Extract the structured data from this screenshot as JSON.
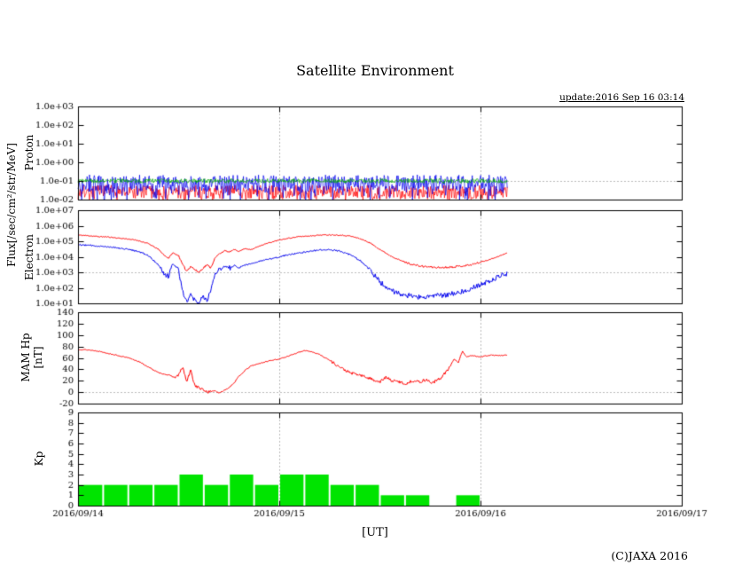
{
  "page": {
    "title": "Satellite Environment",
    "update": "update:2016 Sep 16 03:14",
    "x_axis_unit": "[UT]",
    "copyright": "(C)JAXA 2016",
    "axis_labels": {
      "flux": "Flux[/sec/cm²/str/MeV]",
      "proton": "Proton",
      "electron": "Electron",
      "mam_line1": "MAM Hp",
      "mam_line2": "[nT]",
      "kp": "Kp"
    }
  },
  "chart_data": {
    "type": "line",
    "subtype": "multi-panel time series",
    "title": "Satellite Environment",
    "x": {
      "label": "[UT]",
      "ticks": [
        "2016/09/14",
        "2016/09/15",
        "2016/09/16",
        "2016/09/17"
      ],
      "span_days": 3,
      "grid_days": [
        1,
        2
      ],
      "data_end_day": 2.135
    },
    "panels": [
      {
        "id": "proton",
        "ylabel": "Proton",
        "scale": "log",
        "ylim": [
          0.01,
          1000
        ],
        "yticks": [
          "1.0e+03",
          "1.0e+02",
          "1.0e+01",
          "1.0e+00",
          "1.0e-01",
          "1.0e-02"
        ],
        "grid_y": 0.1,
        "series": [
          {
            "name": "proton-red",
            "color": "#ff0000",
            "kind": "noise-band",
            "band": [
              0.01,
              0.08
            ],
            "base_log": -1.6,
            "amp_log": 0.38,
            "dip_prob": 0.12,
            "dip_amp": 0.35,
            "seed": 7
          },
          {
            "name": "proton-blue",
            "color": "#0000ee",
            "kind": "noise-band",
            "band": [
              0.01,
              0.2
            ],
            "base_log": -1.12,
            "amp_log": 0.45,
            "dip_prob": 0.3,
            "dip_amp": 0.8,
            "seed": 8
          },
          {
            "name": "proton-green",
            "color": "#00aa00",
            "kind": "noise-band",
            "band": [
              0.07,
              0.15
            ],
            "base_log": -1.0,
            "amp_log": 0.12,
            "dip_prob": 0,
            "dip_amp": 0,
            "seed": 9
          }
        ]
      },
      {
        "id": "electron",
        "ylabel": "Electron",
        "scale": "log",
        "ylim": [
          10,
          10000000
        ],
        "yticks": [
          "1.0e+07",
          "1.0e+06",
          "1.0e+05",
          "1.0e+04",
          "1.0e+03",
          "1.0e+02",
          "1.0e+01"
        ],
        "grid_y": 1000,
        "series": [
          {
            "name": "electron-red",
            "color": "#ff0000",
            "seed": 11,
            "noise_below_log": 3.7,
            "noise_lo": 0.06,
            "noise_hi": 0.03,
            "points": [
              [
                0,
                250000
              ],
              [
                0.05,
                230000
              ],
              [
                0.1,
                200000
              ],
              [
                0.15,
                190000
              ],
              [
                0.2,
                160000
              ],
              [
                0.25,
                140000
              ],
              [
                0.3,
                110000
              ],
              [
                0.35,
                70000
              ],
              [
                0.4,
                30000
              ],
              [
                0.43,
                12000
              ],
              [
                0.45,
                8000
              ],
              [
                0.47,
                18000
              ],
              [
                0.5,
                12000
              ],
              [
                0.52,
                3000
              ],
              [
                0.54,
                1200
              ],
              [
                0.56,
                2500
              ],
              [
                0.58,
                1500
              ],
              [
                0.6,
                1000
              ],
              [
                0.62,
                1800
              ],
              [
                0.64,
                3000
              ],
              [
                0.66,
                2000
              ],
              [
                0.68,
                8000
              ],
              [
                0.7,
                15000
              ],
              [
                0.73,
                25000
              ],
              [
                0.75,
                20000
              ],
              [
                0.78,
                30000
              ],
              [
                0.8,
                22000
              ],
              [
                0.83,
                35000
              ],
              [
                0.86,
                28000
              ],
              [
                0.9,
                50000
              ],
              [
                0.95,
                80000
              ],
              [
                1.0,
                120000
              ],
              [
                1.05,
                160000
              ],
              [
                1.1,
                200000
              ],
              [
                1.15,
                220000
              ],
              [
                1.2,
                250000
              ],
              [
                1.25,
                260000
              ],
              [
                1.3,
                250000
              ],
              [
                1.35,
                220000
              ],
              [
                1.4,
                150000
              ],
              [
                1.45,
                80000
              ],
              [
                1.5,
                30000
              ],
              [
                1.55,
                12000
              ],
              [
                1.6,
                6000
              ],
              [
                1.65,
                3500
              ],
              [
                1.7,
                2500
              ],
              [
                1.75,
                2200
              ],
              [
                1.8,
                2000
              ],
              [
                1.85,
                2200
              ],
              [
                1.9,
                2500
              ],
              [
                1.95,
                3000
              ],
              [
                2.0,
                4500
              ],
              [
                2.05,
                7000
              ],
              [
                2.1,
                12000
              ],
              [
                2.135,
                18000
              ]
            ]
          },
          {
            "name": "electron-blue",
            "color": "#0000ee",
            "seed": 12,
            "noise_below_log": 3.3,
            "noise_lo": 0.17,
            "noise_hi": 0.05,
            "points": [
              [
                0,
                60000
              ],
              [
                0.05,
                55000
              ],
              [
                0.1,
                50000
              ],
              [
                0.15,
                45000
              ],
              [
                0.2,
                38000
              ],
              [
                0.25,
                30000
              ],
              [
                0.3,
                22000
              ],
              [
                0.35,
                12000
              ],
              [
                0.4,
                3000
              ],
              [
                0.43,
                800
              ],
              [
                0.45,
                500
              ],
              [
                0.47,
                4000
              ],
              [
                0.5,
                1500
              ],
              [
                0.52,
                60
              ],
              [
                0.54,
                15
              ],
              [
                0.56,
                35
              ],
              [
                0.58,
                15
              ],
              [
                0.6,
                12
              ],
              [
                0.62,
                25
              ],
              [
                0.64,
                15
              ],
              [
                0.66,
                80
              ],
              [
                0.68,
                600
              ],
              [
                0.7,
                1500
              ],
              [
                0.73,
                2500
              ],
              [
                0.75,
                1800
              ],
              [
                0.78,
                2800
              ],
              [
                0.8,
                2000
              ],
              [
                0.83,
                3000
              ],
              [
                0.86,
                3500
              ],
              [
                0.9,
                5000
              ],
              [
                0.95,
                7000
              ],
              [
                1.0,
                10000
              ],
              [
                1.05,
                14000
              ],
              [
                1.1,
                18000
              ],
              [
                1.15,
                22000
              ],
              [
                1.2,
                28000
              ],
              [
                1.25,
                28000
              ],
              [
                1.3,
                24000
              ],
              [
                1.35,
                14000
              ],
              [
                1.4,
                6000
              ],
              [
                1.45,
                1500
              ],
              [
                1.5,
                250
              ],
              [
                1.55,
                70
              ],
              [
                1.6,
                40
              ],
              [
                1.65,
                30
              ],
              [
                1.7,
                25
              ],
              [
                1.75,
                30
              ],
              [
                1.8,
                30
              ],
              [
                1.85,
                40
              ],
              [
                1.9,
                55
              ],
              [
                1.95,
                90
              ],
              [
                2.0,
                160
              ],
              [
                2.05,
                300
              ],
              [
                2.1,
                600
              ],
              [
                2.135,
                900
              ]
            ]
          }
        ]
      },
      {
        "id": "mam",
        "ylabel": "MAM Hp [nT]",
        "scale": "linear",
        "ylim": [
          -20,
          140
        ],
        "ytick_values": [
          140,
          120,
          100,
          80,
          60,
          40,
          20,
          0,
          -20
        ],
        "grid_y": 0,
        "series": [
          {
            "name": "hp",
            "color": "#ff0000",
            "seed": 13,
            "points": [
              [
                0,
                75
              ],
              [
                0.05,
                74
              ],
              [
                0.1,
                72
              ],
              [
                0.15,
                68
              ],
              [
                0.2,
                64
              ],
              [
                0.25,
                60
              ],
              [
                0.3,
                54
              ],
              [
                0.35,
                44
              ],
              [
                0.4,
                34
              ],
              [
                0.45,
                30
              ],
              [
                0.48,
                26
              ],
              [
                0.5,
                30
              ],
              [
                0.52,
                44
              ],
              [
                0.54,
                18
              ],
              [
                0.56,
                38
              ],
              [
                0.58,
                12
              ],
              [
                0.6,
                8
              ],
              [
                0.62,
                4
              ],
              [
                0.65,
                0
              ],
              [
                0.68,
                3
              ],
              [
                0.7,
                -2
              ],
              [
                0.72,
                2
              ],
              [
                0.75,
                8
              ],
              [
                0.78,
                18
              ],
              [
                0.8,
                28
              ],
              [
                0.83,
                38
              ],
              [
                0.86,
                46
              ],
              [
                0.9,
                50
              ],
              [
                0.95,
                55
              ],
              [
                1.0,
                58
              ],
              [
                1.05,
                64
              ],
              [
                1.1,
                70
              ],
              [
                1.13,
                73
              ],
              [
                1.16,
                71
              ],
              [
                1.2,
                66
              ],
              [
                1.25,
                56
              ],
              [
                1.3,
                44
              ],
              [
                1.35,
                34
              ],
              [
                1.4,
                30
              ],
              [
                1.45,
                24
              ],
              [
                1.5,
                18
              ],
              [
                1.53,
                26
              ],
              [
                1.56,
                20
              ],
              [
                1.6,
                18
              ],
              [
                1.63,
                14
              ],
              [
                1.66,
                20
              ],
              [
                1.7,
                18
              ],
              [
                1.73,
                22
              ],
              [
                1.76,
                16
              ],
              [
                1.8,
                24
              ],
              [
                1.84,
                40
              ],
              [
                1.87,
                58
              ],
              [
                1.89,
                52
              ],
              [
                1.91,
                72
              ],
              [
                1.93,
                62
              ],
              [
                1.96,
                64
              ],
              [
                2.0,
                62
              ],
              [
                2.05,
                65
              ],
              [
                2.1,
                64
              ],
              [
                2.135,
                65
              ]
            ]
          }
        ]
      },
      {
        "id": "kp",
        "ylabel": "Kp",
        "scale": "linear",
        "ylim": [
          0,
          9
        ],
        "ytick_values": [
          9,
          8,
          7,
          6,
          5,
          4,
          3,
          2,
          1,
          0
        ],
        "grid_y": null,
        "bar_interval_hours": 3,
        "bar_color": "#00e400",
        "values": [
          2,
          2,
          2,
          2,
          3,
          2,
          3,
          2,
          3,
          3,
          2,
          2,
          1,
          1,
          0,
          1
        ]
      }
    ]
  }
}
